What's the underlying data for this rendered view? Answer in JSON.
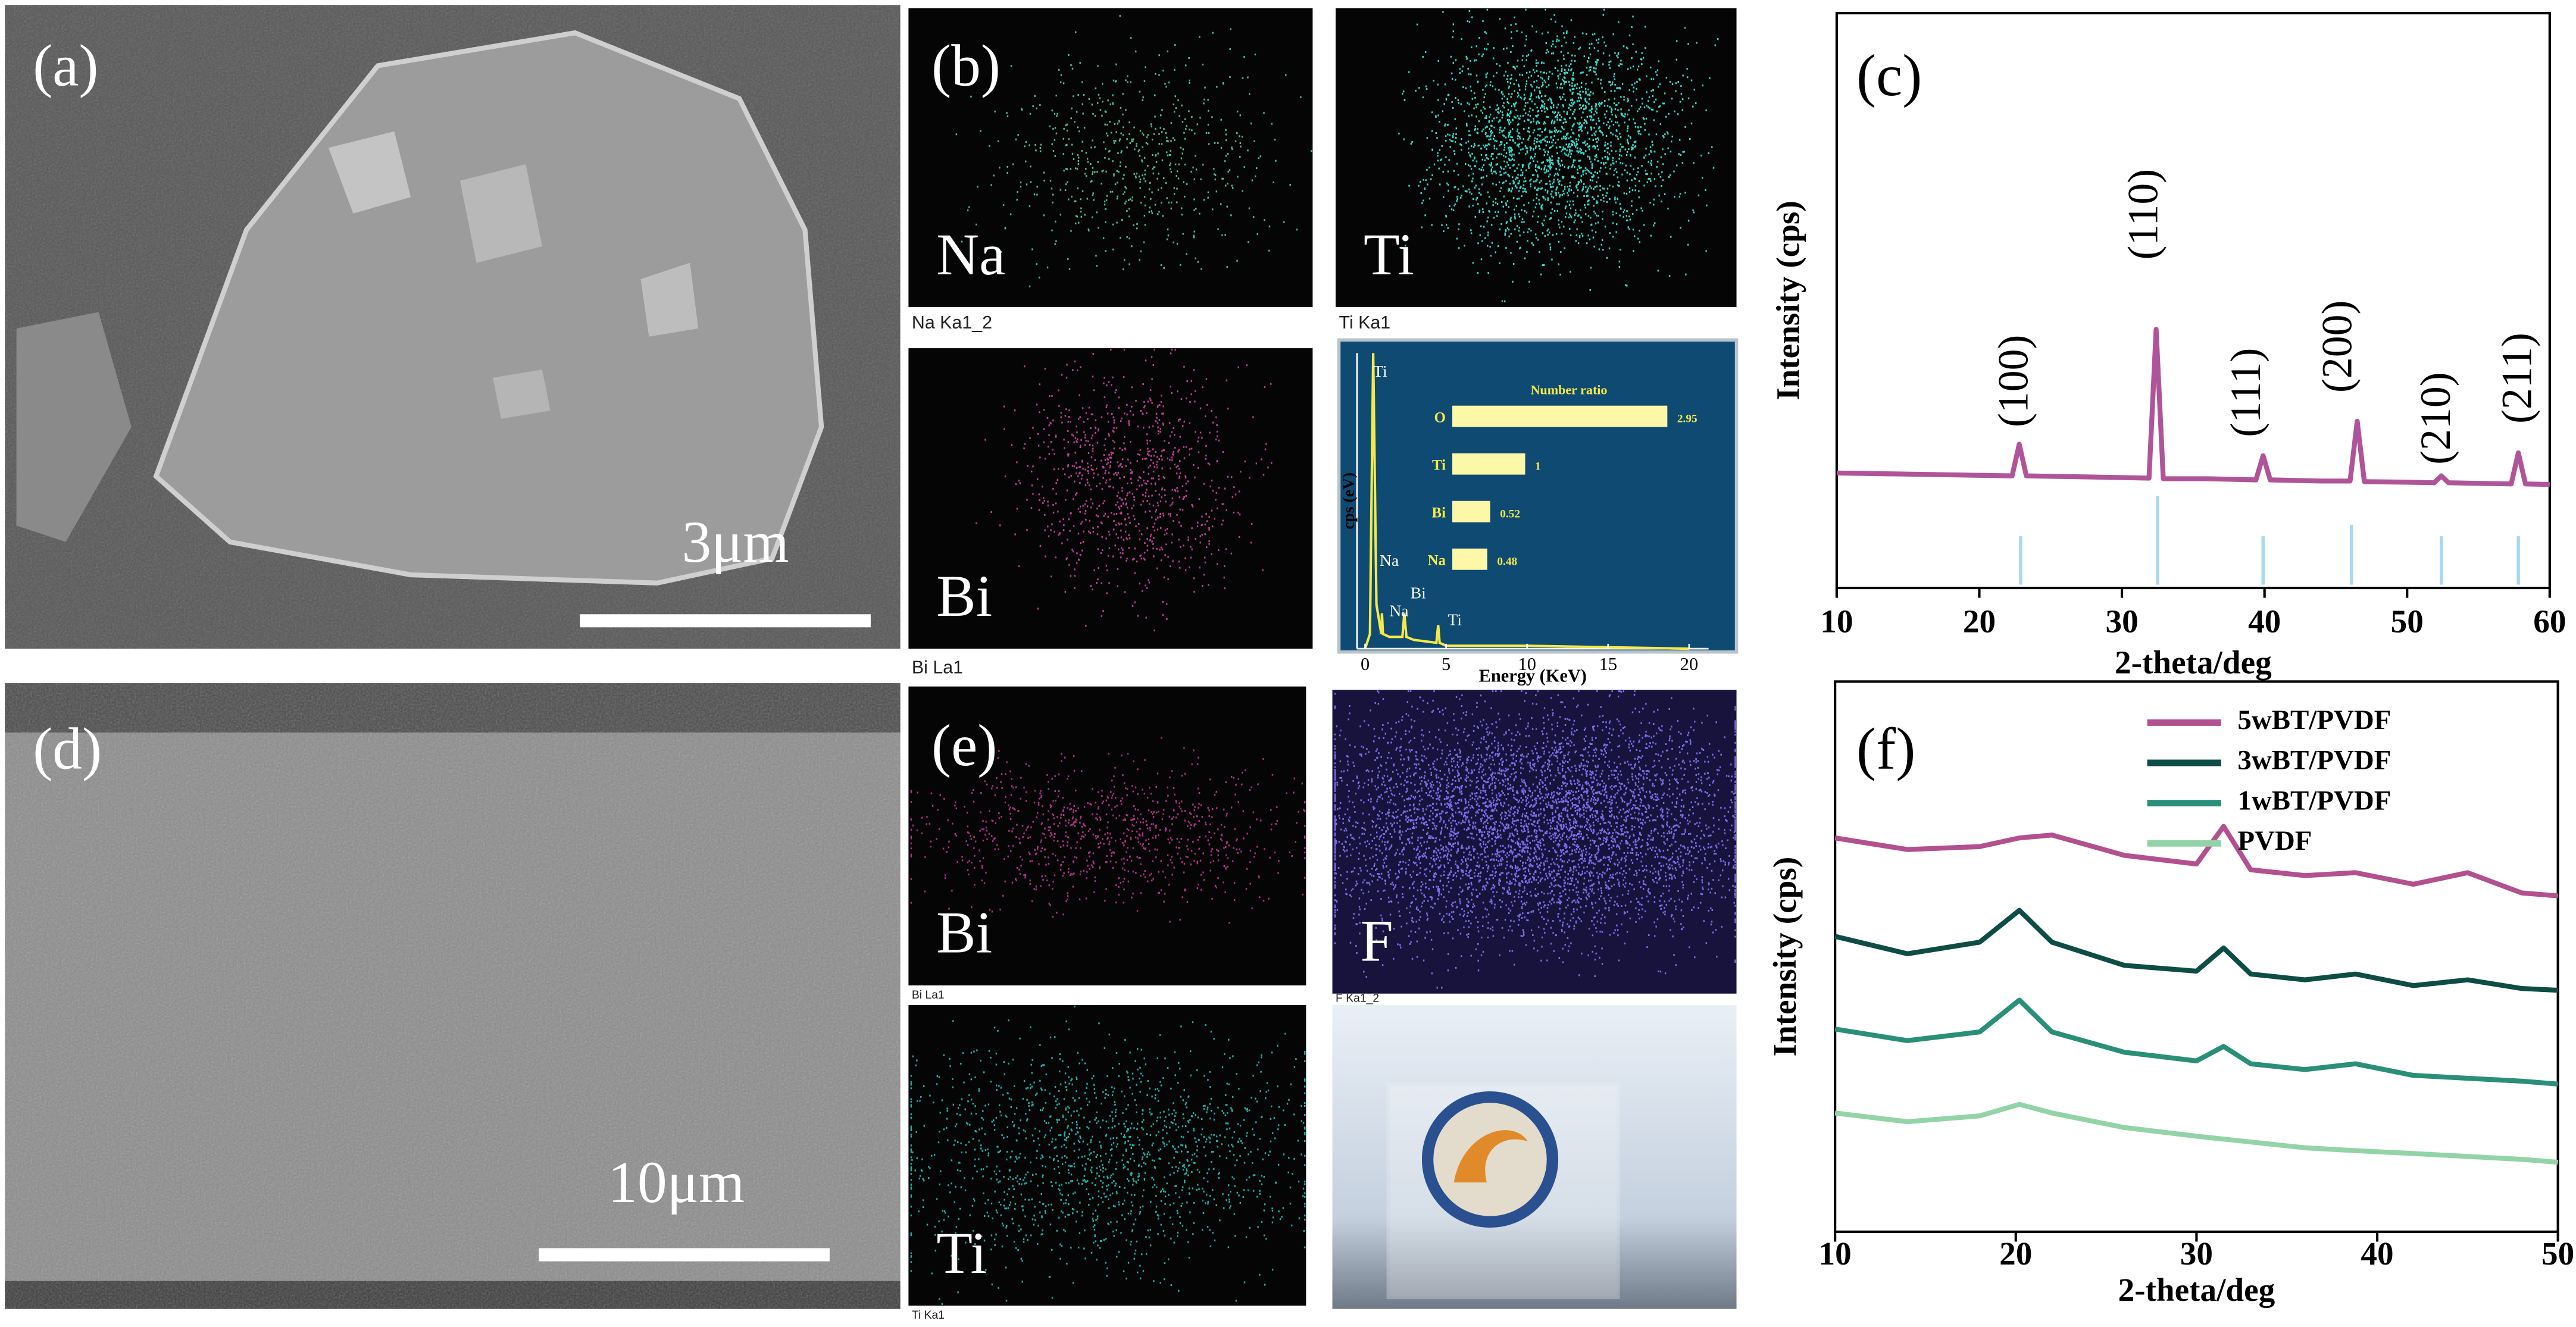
{
  "panels": {
    "a": {
      "label": "(a)",
      "scale_bar": "3μm"
    },
    "b": {
      "label": "(b)",
      "maps": [
        {
          "element": "Na",
          "caption": "Na Ka1_2"
        },
        {
          "element": "Ti",
          "caption": "Ti Ka1"
        },
        {
          "element": "Bi",
          "caption": "Bi La1"
        }
      ]
    },
    "c": {
      "label": "(c)"
    },
    "d": {
      "label": "(d)",
      "scale_bar": "10μm"
    },
    "e": {
      "label": "(e)",
      "maps": [
        {
          "element": "Bi",
          "caption": "Bi La1"
        },
        {
          "element": "F",
          "caption": "F Ka1_2"
        },
        {
          "element": "Ti",
          "caption": "Ti Ka1"
        }
      ]
    },
    "f": {
      "label": "(f)"
    }
  },
  "chart_data": [
    {
      "type": "line",
      "xlabel": "2-theta/deg",
      "ylabel": "Intensity (cps)",
      "x": [
        10,
        15,
        20,
        22.3,
        22.8,
        23.3,
        28,
        31.9,
        32.4,
        32.9,
        36,
        39.4,
        39.9,
        40.4,
        44,
        46.0,
        46.5,
        47.0,
        50,
        51.9,
        52.4,
        52.9,
        55,
        57.3,
        57.8,
        58.3,
        60
      ],
      "series": [
        {
          "color": "#b0549a",
          "values": [
            20,
            19.8,
            19.6,
            19.5,
            25,
            19.5,
            19.3,
            19.1,
            45,
            19.0,
            19.0,
            18.8,
            23,
            18.8,
            18.6,
            18.6,
            29,
            18.5,
            18.4,
            18.3,
            19.5,
            18.3,
            18.2,
            18.1,
            23.5,
            18.1,
            18
          ]
        }
      ],
      "reference": {
        "color": "#a8d8f2",
        "x": [
          22.9,
          32.5,
          39.9,
          46.1,
          52.4,
          57.8
        ],
        "values": [
          9,
          16,
          9,
          11,
          9,
          9
        ]
      },
      "annotations": [
        {
          "text": "(100)",
          "x": 22.7,
          "y": 36
        },
        {
          "text": "(110)",
          "x": 31.8,
          "y": 65
        },
        {
          "text": "(111)",
          "x": 39,
          "y": 34
        },
        {
          "text": "(200)",
          "x": 45.4,
          "y": 42
        },
        {
          "text": "(210)",
          "x": 52.3,
          "y": 29.5
        },
        {
          "text": "(211)",
          "x": 58,
          "y": 36.5
        }
      ],
      "xlim": [
        10,
        60
      ],
      "xticks": [
        10,
        20,
        30,
        40,
        50,
        60
      ],
      "ylim": [
        0,
        100
      ]
    },
    {
      "type": "eds",
      "xlabel": "Energy (KeV)",
      "ylabel": "cps (eV)",
      "x": [
        0,
        0.3,
        0.5,
        0.7,
        1.0,
        1.04,
        1.1,
        1.5,
        2.3,
        2.42,
        2.55,
        3,
        4.4,
        4.51,
        4.6,
        5,
        10,
        20
      ],
      "values": [
        0,
        5,
        100,
        15,
        5,
        12,
        5,
        4,
        4,
        12,
        4,
        3,
        2,
        8,
        2,
        1,
        1,
        0
      ],
      "color": "#f5e94a",
      "annotations": [
        {
          "text": "Ti",
          "x": 0.5,
          "y": 92
        },
        {
          "text": "Na",
          "x": 0.9,
          "y": 28
        },
        {
          "text": "Na",
          "x": 1.5,
          "y": 11
        },
        {
          "text": "Bi",
          "x": 2.8,
          "y": 17
        },
        {
          "text": "Ti",
          "x": 5.1,
          "y": 8
        }
      ],
      "xlim": [
        -0.5,
        21.2
      ],
      "xticks": [
        0,
        5,
        10,
        15,
        20
      ],
      "ylim": [
        0,
        100
      ],
      "ratio": {
        "title": "Number ratio",
        "categories": [
          "O",
          "Ti",
          "Bi",
          "Na"
        ],
        "values": [
          2.95,
          1,
          0.52,
          0.48
        ],
        "color": "#fdf7a8",
        "xlim": [
          0,
          3.2
        ]
      }
    },
    {
      "type": "line",
      "xlabel": "2-theta/deg",
      "ylabel": "Intensity (cps)",
      "legend": "upper right",
      "x": [
        10,
        14,
        18,
        20.2,
        22,
        26,
        30,
        31.5,
        33,
        36,
        38.8,
        42,
        45,
        48,
        50
      ],
      "series": [
        {
          "name": "5wBT/PVDF",
          "color": "#b3508f",
          "values": [
            73,
            71,
            71.5,
            73,
            73.5,
            70,
            68.5,
            75,
            67.5,
            66.5,
            67,
            65,
            67,
            63.5,
            63
          ]
        },
        {
          "name": "3wBT/PVDF",
          "color": "#0e4d45",
          "values": [
            56,
            53,
            55,
            60.5,
            55,
            51,
            50,
            54,
            49.5,
            48.5,
            49.5,
            47.5,
            48.5,
            47,
            46.7
          ]
        },
        {
          "name": "1wBT/PVDF",
          "color": "#2a8f78",
          "values": [
            40,
            38,
            39.5,
            45,
            39.5,
            36,
            34.5,
            37,
            34,
            33,
            34,
            32,
            31.5,
            31,
            30.5
          ]
        },
        {
          "name": "PVDF",
          "color": "#93d3a8",
          "values": [
            25.5,
            24,
            25,
            27,
            25.5,
            23,
            21.5,
            21,
            20.5,
            19.5,
            19,
            18.5,
            18,
            17.5,
            17
          ]
        }
      ],
      "xlim": [
        10,
        50
      ],
      "xticks": [
        10,
        20,
        30,
        40,
        50
      ],
      "ylim": [
        5,
        100
      ]
    }
  ]
}
